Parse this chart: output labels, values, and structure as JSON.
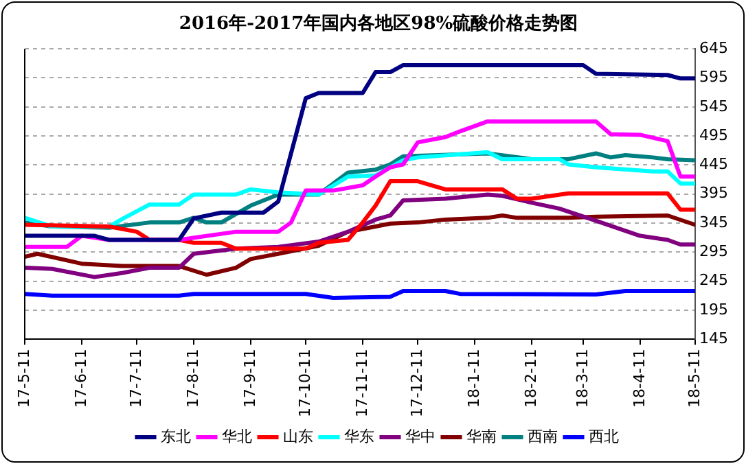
{
  "chart_data": {
    "type": "line",
    "title": "2016年-2017年国内各地区98%硫酸价格走势图",
    "xlim": [
      "2017-05-11",
      "2018-05-11"
    ],
    "xticks": [
      {
        "value": "2017-05-11",
        "label": "17-5-11"
      },
      {
        "value": "2017-06-11",
        "label": "17-6-11"
      },
      {
        "value": "2017-07-11",
        "label": "17-7-11"
      },
      {
        "value": "2017-08-11",
        "label": "17-8-11"
      },
      {
        "value": "2017-09-11",
        "label": "17-9-11"
      },
      {
        "value": "2017-10-11",
        "label": "17-10-11"
      },
      {
        "value": "2017-11-11",
        "label": "17-11-11"
      },
      {
        "value": "2017-12-11",
        "label": "17-12-11"
      },
      {
        "value": "2018-01-11",
        "label": "18-1-11"
      },
      {
        "value": "2018-02-11",
        "label": "18-2-11"
      },
      {
        "value": "2018-03-11",
        "label": "18-3-11"
      },
      {
        "value": "2018-04-11",
        "label": "18-4-11"
      },
      {
        "value": "2018-05-11",
        "label": "18-5-11"
      }
    ],
    "ylim": [
      145,
      645
    ],
    "yticks": [
      145,
      195,
      245,
      295,
      345,
      395,
      445,
      495,
      545,
      595,
      645
    ],
    "grid": "y",
    "legend": "bottom",
    "marker": "none",
    "line_style": "solid",
    "series": [
      {
        "name": "东北",
        "color": "#000080",
        "x": [
          "2017-05-11",
          "2017-06-18",
          "2017-06-26",
          "2017-08-03",
          "2017-08-11",
          "2017-08-26",
          "2017-09-18",
          "2017-09-26",
          "2017-10-11",
          "2017-10-18",
          "2017-11-11",
          "2017-11-18",
          "2017-11-26",
          "2017-12-03",
          "2018-03-11",
          "2018-03-18",
          "2018-04-26",
          "2018-05-03",
          "2018-05-11"
        ],
        "values": [
          323,
          323,
          316,
          316,
          353,
          363,
          363,
          382,
          560,
          569,
          569,
          605,
          605,
          617,
          617,
          602,
          600,
          594,
          594
        ]
      },
      {
        "name": "华北",
        "color": "#ff00ff",
        "x": [
          "2017-05-11",
          "2017-06-03",
          "2017-06-11",
          "2017-06-26",
          "2017-08-03",
          "2017-09-03",
          "2017-09-26",
          "2017-10-03",
          "2017-10-11",
          "2017-10-26",
          "2017-11-11",
          "2017-11-18",
          "2017-11-26",
          "2017-12-03",
          "2017-12-11",
          "2017-12-26",
          "2018-01-03",
          "2018-01-18",
          "2018-02-11",
          "2018-03-18",
          "2018-03-26",
          "2018-04-11",
          "2018-04-26",
          "2018-05-03",
          "2018-05-11"
        ],
        "values": [
          304,
          304,
          323,
          316,
          316,
          330,
          330,
          346,
          401,
          401,
          410,
          425,
          441,
          446,
          484,
          493,
          503,
          520,
          520,
          520,
          498,
          497,
          486,
          425,
          425
        ]
      },
      {
        "name": "山东",
        "color": "#ff0000",
        "x": [
          "2017-05-11",
          "2017-06-26",
          "2017-07-11",
          "2017-07-18",
          "2017-08-03",
          "2017-08-11",
          "2017-08-26",
          "2017-09-03",
          "2017-10-11",
          "2017-10-18",
          "2017-11-03",
          "2017-11-11",
          "2017-11-18",
          "2017-11-26",
          "2017-12-11",
          "2017-12-26",
          "2018-01-26",
          "2018-02-03",
          "2018-02-11",
          "2018-03-03",
          "2018-04-26",
          "2018-05-03",
          "2018-05-11"
        ],
        "values": [
          342,
          339,
          330,
          316,
          316,
          311,
          311,
          301,
          301,
          311,
          316,
          346,
          375,
          417,
          417,
          403,
          403,
          387,
          387,
          396,
          396,
          368,
          368
        ]
      },
      {
        "name": "华东",
        "color": "#00ffff",
        "x": [
          "2017-05-11",
          "2017-05-26",
          "2017-06-26",
          "2017-07-03",
          "2017-07-18",
          "2017-08-03",
          "2017-08-11",
          "2017-09-03",
          "2017-09-11",
          "2017-09-26",
          "2017-10-18",
          "2017-11-03",
          "2017-11-18",
          "2017-12-03",
          "2017-12-11",
          "2018-01-18",
          "2018-01-26",
          "2018-02-26",
          "2018-03-03",
          "2018-03-18",
          "2018-04-18",
          "2018-04-26",
          "2018-05-03",
          "2018-05-11"
        ],
        "values": [
          354,
          339,
          339,
          352,
          377,
          377,
          394,
          394,
          403,
          398,
          394,
          425,
          427,
          453,
          458,
          467,
          455,
          455,
          446,
          441,
          434,
          434,
          413,
          413
        ]
      },
      {
        "name": "华中",
        "color": "#800080",
        "x": [
          "2017-05-11",
          "2017-05-26",
          "2017-06-18",
          "2017-07-03",
          "2017-07-18",
          "2017-08-03",
          "2017-08-11",
          "2017-09-03",
          "2017-09-26",
          "2017-10-18",
          "2017-11-03",
          "2017-11-18",
          "2017-11-26",
          "2017-12-03",
          "2017-12-26",
          "2018-01-18",
          "2018-01-26",
          "2018-02-11",
          "2018-02-26",
          "2018-03-18",
          "2018-04-11",
          "2018-04-26",
          "2018-05-03",
          "2018-05-11"
        ],
        "values": [
          268,
          266,
          252,
          259,
          268,
          268,
          292,
          301,
          304,
          313,
          330,
          351,
          358,
          384,
          387,
          394,
          392,
          380,
          370,
          349,
          323,
          316,
          308,
          308
        ]
      },
      {
        "name": "华南",
        "color": "#800000",
        "x": [
          "2017-05-11",
          "2017-05-18",
          "2017-06-11",
          "2017-07-03",
          "2017-08-03",
          "2017-08-18",
          "2017-09-03",
          "2017-09-11",
          "2017-09-26",
          "2017-10-18",
          "2017-11-03",
          "2017-11-18",
          "2017-11-26",
          "2017-12-11",
          "2017-12-26",
          "2018-01-18",
          "2018-01-26",
          "2018-02-03",
          "2018-03-03",
          "2018-03-18",
          "2018-04-26",
          "2018-05-11"
        ],
        "values": [
          287,
          292,
          275,
          271,
          271,
          256,
          268,
          283,
          292,
          306,
          330,
          339,
          344,
          346,
          351,
          354,
          358,
          354,
          354,
          356,
          358,
          342
        ]
      },
      {
        "name": "西南",
        "color": "#008080",
        "x": [
          "2017-05-11",
          "2017-05-26",
          "2017-06-26",
          "2017-07-18",
          "2017-08-03",
          "2017-08-11",
          "2017-08-18",
          "2017-08-26",
          "2017-09-11",
          "2017-09-26",
          "2017-10-18",
          "2017-11-03",
          "2017-11-18",
          "2017-11-26",
          "2017-12-03",
          "2018-01-18",
          "2018-02-11",
          "2018-03-03",
          "2018-03-18",
          "2018-03-26",
          "2018-04-03",
          "2018-04-18",
          "2018-04-26",
          "2018-05-11"
        ],
        "values": [
          346,
          339,
          337,
          346,
          346,
          354,
          346,
          346,
          375,
          394,
          394,
          432,
          437,
          446,
          460,
          465,
          455,
          455,
          465,
          458,
          462,
          458,
          455,
          453
        ]
      },
      {
        "name": "西北",
        "color": "#0000ff",
        "x": [
          "2017-05-11",
          "2017-05-26",
          "2017-08-03",
          "2017-08-11",
          "2017-10-11",
          "2017-10-26",
          "2017-11-26",
          "2017-12-03",
          "2017-12-26",
          "2018-01-03",
          "2018-03-18",
          "2018-04-03",
          "2018-05-11"
        ],
        "values": [
          223,
          220,
          220,
          223,
          223,
          216,
          218,
          228,
          228,
          223,
          222,
          228,
          228
        ]
      }
    ]
  }
}
